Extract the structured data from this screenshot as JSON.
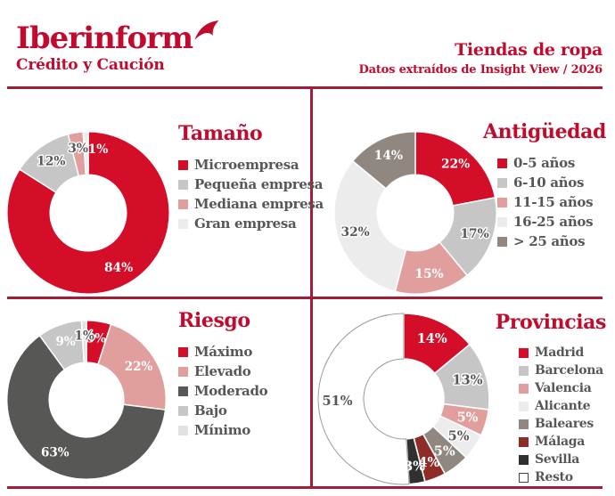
{
  "header": {
    "logo": {
      "name": "Iberinform",
      "tagline": "Crédito y Caución"
    },
    "title": "Tiendas de ropa",
    "subtitle": "Datos extraídos de Insight View / 2026"
  },
  "colors": {
    "brand_red": "#c10b2e",
    "rule_red": "#a41d36",
    "chart_red": "#d40e28",
    "pink": "#e09e9c",
    "gray": "#c6c6c6",
    "light_gray": "#ececec",
    "taupe": "#8f8780",
    "dark_gray": "#575756",
    "maroon": "#8e2c28",
    "near_black": "#30302e",
    "legend_text": "#575756"
  },
  "chart_data": [
    {
      "type": "donut",
      "title": "Tamaño",
      "slices": [
        {
          "label": "Microempresa",
          "value": 84,
          "pct_label": "84%",
          "color": "#d40e28",
          "label_color": "#ffffff"
        },
        {
          "label": "Pequeña empresa",
          "value": 12,
          "pct_label": "12%",
          "color": "#c6c6c6",
          "label_color": "#575756"
        },
        {
          "label": "Mediana empresa",
          "value": 3,
          "pct_label": "3%",
          "color": "#e09e9c",
          "label_color": "#575756"
        },
        {
          "label": "Gran empresa",
          "value": 1,
          "pct_label": "1%",
          "color": "#ececec",
          "label_color": "#ffffff",
          "label_dx": 14,
          "label_dy": 2
        }
      ]
    },
    {
      "type": "donut",
      "title": "Antigüedad",
      "slices": [
        {
          "label": "0-5 años",
          "value": 22,
          "pct_label": "22%",
          "color": "#d40e28",
          "label_color": "#ffffff"
        },
        {
          "label": "6-10 años",
          "value": 17,
          "pct_label": "17%",
          "color": "#c6c6c6",
          "label_color": "#575756"
        },
        {
          "label": "11-15 años",
          "value": 15,
          "pct_label": "15%",
          "color": "#e09e9c",
          "label_color": "#ffffff"
        },
        {
          "label": "16-25 años",
          "value": 32,
          "pct_label": "32%",
          "color": "#ececec",
          "label_color": "#575756"
        },
        {
          "label": "> 25 años",
          "value": 14,
          "pct_label": "14%",
          "color": "#8f8780",
          "label_color": "#ffffff"
        }
      ]
    },
    {
      "type": "donut",
      "title": "Riesgo",
      "slices": [
        {
          "label": "Máximo",
          "value": 5,
          "pct_label": "5%",
          "color": "#d40e28",
          "label_color": "#ffffff"
        },
        {
          "label": "Elevado",
          "value": 22,
          "pct_label": "22%",
          "color": "#e09e9c",
          "label_color": "#ffffff"
        },
        {
          "label": "Moderado",
          "value": 63,
          "pct_label": "63%",
          "color": "#575756",
          "label_color": "#ffffff"
        },
        {
          "label": "Bajo",
          "value": 9,
          "pct_label": "9%",
          "color": "#c6c6c6",
          "label_color": "#ffffff"
        },
        {
          "label": "Mínimo",
          "value": 1,
          "pct_label": "1%",
          "color": "#e2e2e2",
          "label_color": "#575756"
        }
      ]
    },
    {
      "type": "donut",
      "title": "Provincias",
      "slices": [
        {
          "label": "Madrid",
          "value": 14,
          "pct_label": "14%",
          "color": "#d40e28",
          "label_color": "#ffffff"
        },
        {
          "label": "Barcelona",
          "value": 13,
          "pct_label": "13%",
          "color": "#c6c6c6",
          "label_color": "#575756"
        },
        {
          "label": "Valencia",
          "value": 5,
          "pct_label": "5%",
          "color": "#e09e9c",
          "label_color": "#ffffff"
        },
        {
          "label": "Alicante",
          "value": 5,
          "pct_label": "5%",
          "color": "#ececec",
          "label_color": "#575756"
        },
        {
          "label": "Baleares",
          "value": 5,
          "pct_label": "5%",
          "color": "#8f8780",
          "label_color": "#ffffff"
        },
        {
          "label": "Málaga",
          "value": 4,
          "pct_label": "4%",
          "color": "#8e2c28",
          "label_color": "#ffffff"
        },
        {
          "label": "Sevilla",
          "value": 3,
          "pct_label": "3%",
          "color": "#30302e",
          "label_color": "#ffffff"
        },
        {
          "label": "Resto",
          "value": 51,
          "pct_label": "51%",
          "color": "#ffffff",
          "label_color": "#575756",
          "outlined": true
        }
      ]
    }
  ]
}
